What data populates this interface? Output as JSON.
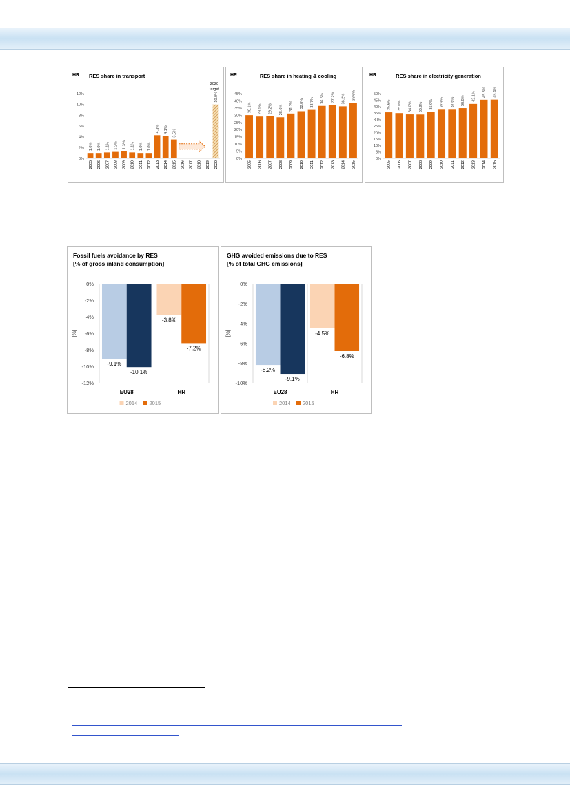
{
  "colors": {
    "orange": "#e36c0a",
    "light_orange": "#fbd4b4",
    "light_blue": "#b8cce4",
    "dark_blue": "#17365d",
    "axis": "#d9d9d9",
    "text": "#404040"
  },
  "chart_data": [
    {
      "type": "bar",
      "corner_label": "HR",
      "title": "RES share in transport",
      "categories": [
        "2005",
        "2006",
        "2007",
        "2008",
        "2009",
        "2010",
        "2011",
        "2012",
        "2013",
        "2014",
        "2015",
        "2016",
        "2017",
        "2018",
        "2019",
        "2020"
      ],
      "values": [
        1.0,
        1.0,
        1.1,
        1.2,
        1.3,
        1.1,
        1.0,
        1.0,
        4.3,
        4.1,
        3.5,
        null,
        null,
        null,
        null,
        10.0
      ],
      "value_labels": [
        "1.0%",
        "1.0%",
        "1.1%",
        "1.2%",
        "1.3%",
        "1.1%",
        "1.0%",
        "1.0%",
        "4.3%",
        "4.1%",
        "3.5%",
        "",
        "",
        "",
        "",
        "10.0%"
      ],
      "yticks": [
        "0%",
        "2%",
        "4%",
        "6%",
        "8%",
        "10%",
        "12%"
      ],
      "ylim": [
        0,
        12
      ],
      "target_label_line1": "2020",
      "target_label_line2": "target",
      "target_pattern": "hatched",
      "arrow": "dashed-right-arrow"
    },
    {
      "type": "bar",
      "corner_label": "HR",
      "title": "RES share in heating & cooling",
      "categories": [
        "2005",
        "2006",
        "2007",
        "2008",
        "2009",
        "2010",
        "2011",
        "2012",
        "2013",
        "2014",
        "2015"
      ],
      "values": [
        30.1,
        29.1,
        29.2,
        28.6,
        31.2,
        32.8,
        33.7,
        36.5,
        37.2,
        36.2,
        38.6
      ],
      "value_labels": [
        "30.1%",
        "29.1%",
        "29.2%",
        "28.6%",
        "31.2%",
        "32.8%",
        "33.7%",
        "36.5%",
        "37.2%",
        "36.2%",
        "38.6%"
      ],
      "yticks": [
        "0%",
        "5%",
        "10%",
        "15%",
        "20%",
        "25%",
        "30%",
        "35%",
        "40%",
        "45%"
      ],
      "ylim": [
        0,
        45
      ]
    },
    {
      "type": "bar",
      "corner_label": "HR",
      "title": "RES share in electricity generation",
      "categories": [
        "2005",
        "2006",
        "2007",
        "2008",
        "2009",
        "2010",
        "2011",
        "2012",
        "2013",
        "2014",
        "2015"
      ],
      "values": [
        35.6,
        35.0,
        34.0,
        33.9,
        35.9,
        37.6,
        37.6,
        38.8,
        42.1,
        45.3,
        45.4
      ],
      "value_labels": [
        "35.6%",
        "35.0%",
        "34.0%",
        "33.9%",
        "35.9%",
        "37.6%",
        "37.6%",
        "38.8%",
        "42.1%",
        "45.3%",
        "45.4%"
      ],
      "yticks": [
        "0%",
        "5%",
        "10%",
        "15%",
        "20%",
        "25%",
        "30%",
        "35%",
        "40%",
        "45%",
        "50%"
      ],
      "ylim": [
        0,
        50
      ]
    },
    {
      "type": "bar",
      "title_line1": "Fossil fuels avoidance by RES",
      "title_line2": "[% of gross inland consumption]",
      "ylabel": "[%]",
      "categories": [
        "EU28",
        "HR"
      ],
      "series": [
        {
          "name": "2014",
          "values": [
            -9.1,
            -3.8
          ],
          "labels": [
            "-9.1%",
            "-3.8%"
          ]
        },
        {
          "name": "2015",
          "values": [
            -10.1,
            -7.2
          ],
          "labels": [
            "-10.1%",
            "-7.2%"
          ]
        }
      ],
      "yticks": [
        "0%",
        "-2%",
        "-4%",
        "-6%",
        "-8%",
        "-10%",
        "-12%"
      ],
      "ylim": [
        -12,
        0
      ],
      "legend": "bottom"
    },
    {
      "type": "bar",
      "title_line1": "GHG avoided emissions due to RES",
      "title_line2": "[% of total GHG emissions]",
      "ylabel": "[%]",
      "categories": [
        "EU28",
        "HR"
      ],
      "series": [
        {
          "name": "2014",
          "values": [
            -8.2,
            -4.5
          ],
          "labels": [
            "-8.2%",
            "-4.5%"
          ]
        },
        {
          "name": "2015",
          "values": [
            -9.1,
            -6.8
          ],
          "labels": [
            "-9.1%",
            "-6.8%"
          ]
        }
      ],
      "yticks": [
        "0%",
        "-2%",
        "-4%",
        "-6%",
        "-8%",
        "-10%"
      ],
      "ylim": [
        -10,
        0
      ],
      "legend": "bottom"
    }
  ]
}
